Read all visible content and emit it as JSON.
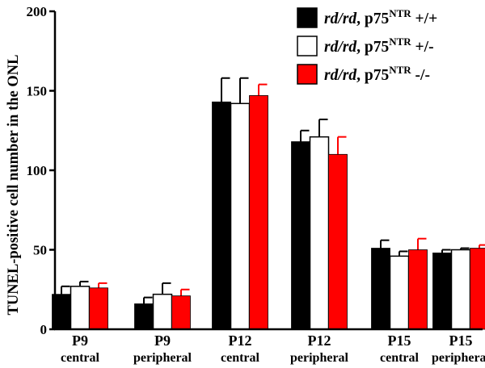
{
  "chart_data": {
    "type": "bar",
    "ylabel": "TUNEL-positive cell number in the ONL",
    "xlabel": "",
    "title": "",
    "ylim": [
      0,
      200
    ],
    "yticks": [
      0,
      50,
      100,
      150,
      200
    ],
    "categories": [
      "P9",
      "P9",
      "P12",
      "P12",
      "P15",
      "P15"
    ],
    "subcategories": [
      "central",
      "peripheral",
      "central",
      "peripheral",
      "central",
      "peripheral"
    ],
    "series": [
      {
        "name": "rd/rd, p75NTR +/+",
        "name_italic": "rd/rd",
        "name_rest": ", p75",
        "name_sup": "NTR",
        "name_tail": " +/+",
        "color": "#000000",
        "values": [
          22,
          16,
          143,
          118,
          51,
          48
        ],
        "errors": [
          5,
          4,
          15,
          7,
          5,
          2
        ]
      },
      {
        "name": "rd/rd, p75NTR +/-",
        "name_italic": "rd/rd",
        "name_rest": ", p75",
        "name_sup": "NTR",
        "name_tail": " +/-",
        "color": "#ffffff",
        "values": [
          27,
          22,
          142,
          121,
          46,
          50
        ],
        "errors": [
          3,
          7,
          16,
          11,
          3,
          1
        ]
      },
      {
        "name": "rd/rd, p75NTR -/-",
        "name_italic": "rd/rd",
        "name_rest": ", p75",
        "name_sup": "NTR",
        "name_tail": " -/-",
        "color": "#ff0000",
        "values": [
          26,
          21,
          147,
          110,
          50,
          51
        ],
        "errors": [
          3,
          4,
          7,
          11,
          7,
          2
        ]
      }
    ],
    "legend_position": "top-right",
    "grid": false
  }
}
